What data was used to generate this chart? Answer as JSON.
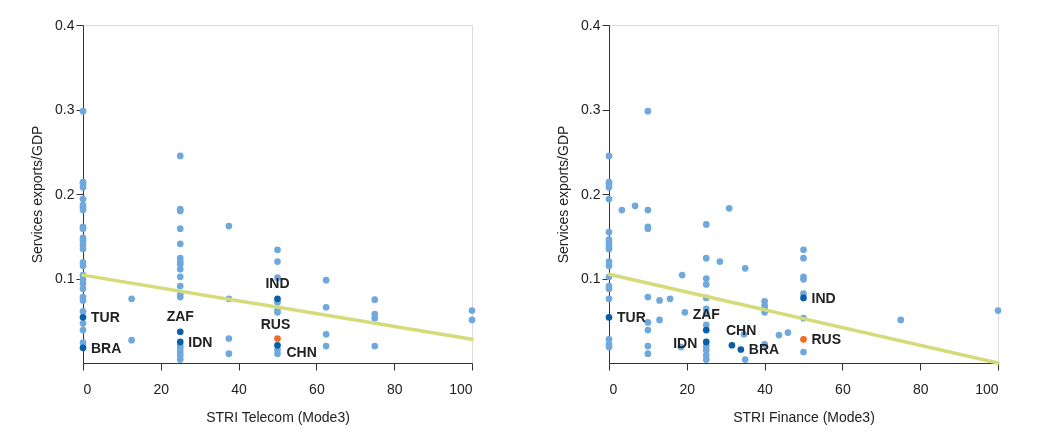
{
  "chart_data": [
    {
      "type": "scatter",
      "xlabel": "STRI Telecom (Mode3)",
      "ylabel": "Services exports/GDP",
      "xlim": [
        0,
        100
      ],
      "xticks": [
        0,
        20,
        40,
        60,
        80,
        100
      ],
      "ylim": [
        0,
        0.4
      ],
      "yticks": [
        0.1,
        0.2,
        0.3,
        0.4
      ],
      "grid": false,
      "marker": "circle",
      "series": [
        {
          "color": "#6fa8dc",
          "x": [
            0,
            0,
            0,
            0,
            0,
            0,
            0,
            0,
            0,
            0,
            0,
            0,
            0,
            0,
            0,
            0,
            0,
            0,
            0,
            0,
            0,
            0,
            0,
            0,
            0,
            0,
            12.5,
            12.5,
            25,
            25,
            25,
            25,
            25,
            25,
            25,
            25,
            25,
            25,
            25,
            25,
            25,
            25,
            25,
            25,
            25,
            25,
            37.5,
            37.5,
            37.5,
            37.5,
            50,
            50,
            50,
            50,
            50,
            50,
            50,
            50,
            62.5,
            62.5,
            62.5,
            62.5,
            75,
            75,
            75,
            75,
            100,
            100
          ],
          "values": [
            0.298,
            0.214,
            0.212,
            0.208,
            0.194,
            0.187,
            0.184,
            0.181,
            0.161,
            0.159,
            0.148,
            0.145,
            0.14,
            0.135,
            0.119,
            0.115,
            0.104,
            0.099,
            0.094,
            0.088,
            0.078,
            0.074,
            0.061,
            0.047,
            0.039,
            0.024,
            0.076,
            0.027,
            0.245,
            0.182,
            0.18,
            0.159,
            0.141,
            0.124,
            0.12,
            0.117,
            0.111,
            0.102,
            0.091,
            0.081,
            0.078,
            0.02,
            0.017,
            0.013,
            0.009,
            0.004,
            0.162,
            0.076,
            0.029,
            0.011,
            0.134,
            0.12,
            0.101,
            0.072,
            0.064,
            0.06,
            0.016,
            0.011,
            0.098,
            0.066,
            0.034,
            0.02,
            0.075,
            0.058,
            0.053,
            0.02,
            0.062,
            0.051
          ]
        },
        {
          "name": "TUR",
          "color": "#0a5ea8",
          "x": [
            0
          ],
          "values": [
            0.054
          ]
        },
        {
          "name": "BRA",
          "color": "#0a5ea8",
          "x": [
            0
          ],
          "values": [
            0.018
          ]
        },
        {
          "name": "ZAF",
          "color": "#0a5ea8",
          "x": [
            25
          ],
          "values": [
            0.037
          ]
        },
        {
          "name": "IDN",
          "color": "#0a5ea8",
          "x": [
            25
          ],
          "values": [
            0.025
          ]
        },
        {
          "name": "IND",
          "color": "#0a5ea8",
          "x": [
            50
          ],
          "values": [
            0.076
          ]
        },
        {
          "name": "RUS",
          "color": "#f26a21",
          "x": [
            50
          ],
          "values": [
            0.029
          ]
        },
        {
          "name": "CHN",
          "color": "#0a5ea8",
          "x": [
            50
          ],
          "values": [
            0.021
          ]
        },
        {
          "type": "line",
          "marker": "none",
          "color": "#d3dc78",
          "x": [
            0,
            100
          ],
          "values": [
            0.104,
            0.028
          ]
        }
      ]
    },
    {
      "type": "scatter",
      "xlabel": "STRI Finance (Mode3)",
      "ylabel": "Services exports/GDP",
      "xlim": [
        0,
        100
      ],
      "xticks": [
        0,
        20,
        40,
        60,
        80,
        100
      ],
      "ylim": [
        0,
        0.4
      ],
      "yticks": [
        0.1,
        0.2,
        0.3,
        0.4
      ],
      "grid": false,
      "marker": "circle",
      "series": [
        {
          "color": "#6fa8dc",
          "x": [
            0,
            0,
            0,
            0,
            0,
            0,
            0,
            0,
            0,
            0,
            0,
            0,
            0,
            0,
            0,
            0,
            0,
            0,
            0,
            3.3,
            6.7,
            10,
            10,
            10,
            10,
            10,
            10,
            10,
            10,
            10,
            13,
            13,
            15.7,
            18.8,
            19.5,
            18.5,
            25,
            25,
            25,
            25,
            25,
            25,
            25,
            25,
            25,
            25,
            25,
            25,
            28.5,
            30.9,
            35,
            34.7,
            35,
            40,
            40,
            40,
            40,
            40,
            43.7,
            46,
            50,
            50,
            50,
            50,
            50,
            50,
            50,
            75,
            100
          ],
          "values": [
            0.245,
            0.214,
            0.212,
            0.208,
            0.194,
            0.155,
            0.146,
            0.142,
            0.138,
            0.135,
            0.12,
            0.115,
            0.102,
            0.091,
            0.088,
            0.076,
            0.028,
            0.022,
            0.019,
            0.181,
            0.186,
            0.298,
            0.181,
            0.161,
            0.159,
            0.078,
            0.048,
            0.039,
            0.02,
            0.011,
            0.074,
            0.051,
            0.076,
            0.104,
            0.06,
            0.019,
            0.164,
            0.124,
            0.1,
            0.093,
            0.077,
            0.064,
            0.059,
            0.045,
            0.02,
            0.015,
            0.009,
            0.004,
            0.12,
            0.183,
            0.112,
            0.034,
            0.004,
            0.073,
            0.068,
            0.064,
            0.06,
            0.022,
            0.033,
            0.036,
            0.134,
            0.124,
            0.102,
            0.099,
            0.082,
            0.053,
            0.013,
            0.051,
            0.062
          ]
        },
        {
          "name": "TUR",
          "color": "#0a5ea8",
          "x": [
            0
          ],
          "values": [
            0.054
          ]
        },
        {
          "name": "ZAF",
          "color": "#0a5ea8",
          "x": [
            25
          ],
          "values": [
            0.039
          ]
        },
        {
          "name": "IDN",
          "color": "#0a5ea8",
          "x": [
            25
          ],
          "values": [
            0.025
          ]
        },
        {
          "name": "CHN",
          "color": "#0a5ea8",
          "x": [
            31.6
          ],
          "values": [
            0.021
          ]
        },
        {
          "name": "BRA",
          "color": "#0a5ea8",
          "x": [
            33.9
          ],
          "values": [
            0.016
          ]
        },
        {
          "name": "IND",
          "color": "#0a5ea8",
          "x": [
            50
          ],
          "values": [
            0.077
          ]
        },
        {
          "name": "RUS",
          "color": "#f26a21",
          "x": [
            50
          ],
          "values": [
            0.028
          ]
        },
        {
          "type": "line",
          "marker": "none",
          "color": "#d3dc78",
          "x": [
            0,
            100
          ],
          "values": [
            0.105,
            0.0
          ]
        }
      ]
    }
  ]
}
